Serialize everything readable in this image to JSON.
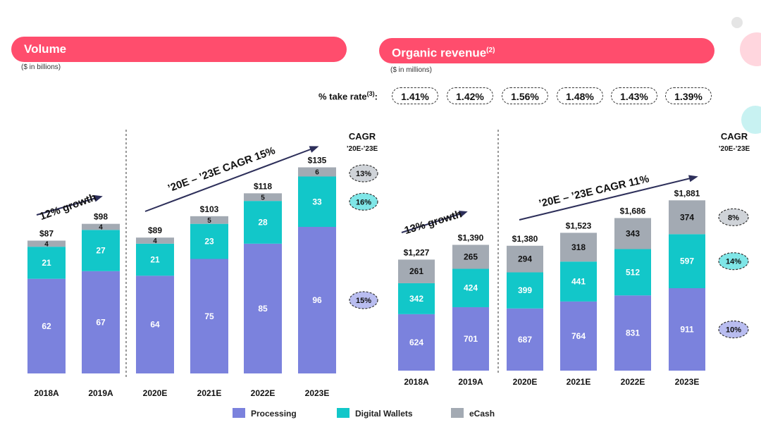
{
  "volume": {
    "title": "Volume",
    "subtitle": "($ in billions)"
  },
  "revenue": {
    "title": "Organic revenue",
    "title_note": "(2)",
    "subtitle": "($ in millions)",
    "take_rate_label": "% take rate",
    "take_rate_note": "(3)",
    "take_rate_suffix": ":",
    "take_rates": [
      "1.41%",
      "1.42%",
      "1.56%",
      "1.48%",
      "1.43%",
      "1.39%"
    ]
  },
  "colors": {
    "processing": "#7b82dd",
    "digital_wallets": "#12c7c9",
    "ecash": "#a3aab3",
    "accent": "#ff4d6d"
  },
  "legend": [
    "Processing",
    "Digital Wallets",
    "eCash"
  ],
  "chart_data": [
    {
      "type": "bar",
      "stacked": true,
      "title": "Volume",
      "units": "($ in billions)",
      "categories": [
        "2018A",
        "2019A",
        "2020E",
        "2021E",
        "2022E",
        "2023E"
      ],
      "series": [
        {
          "name": "Processing",
          "values": [
            62,
            67,
            64,
            75,
            85,
            96
          ]
        },
        {
          "name": "Digital Wallets",
          "values": [
            21,
            27,
            21,
            23,
            28,
            33
          ]
        },
        {
          "name": "eCash",
          "values": [
            4,
            4,
            4,
            5,
            5,
            6
          ]
        }
      ],
      "totals": [
        "$87",
        "$98",
        "$89",
        "$103",
        "$118",
        "$135"
      ],
      "ylim": [
        0,
        135
      ],
      "growth_label": "12% growth",
      "cagr_arrow_label": "’20E – ’23E CAGR 15%",
      "cagr_header": "CAGR",
      "cagr_header_sub": "’20E-’23E",
      "cagr": {
        "Processing": "15%",
        "Digital Wallets": "16%",
        "eCash": "13%"
      }
    },
    {
      "type": "bar",
      "stacked": true,
      "title": "Organic revenue",
      "units": "($ in millions)",
      "categories": [
        "2018A",
        "2019A",
        "2020E",
        "2021E",
        "2022E",
        "2023E"
      ],
      "series": [
        {
          "name": "Processing",
          "values": [
            624,
            701,
            687,
            764,
            831,
            911
          ]
        },
        {
          "name": "Digital Wallets",
          "values": [
            342,
            424,
            399,
            441,
            512,
            597
          ]
        },
        {
          "name": "eCash",
          "values": [
            261,
            265,
            294,
            318,
            343,
            374
          ]
        }
      ],
      "totals": [
        "$1,227",
        "$1,390",
        "$1,380",
        "$1,523",
        "$1,686",
        "$1,881"
      ],
      "ylim": [
        0,
        1881
      ],
      "growth_label": "13% growth",
      "cagr_arrow_label": "’20E – ’23E CAGR 11%",
      "cagr_header": "CAGR",
      "cagr_header_sub": "’20E-’23E",
      "cagr": {
        "Processing": "10%",
        "Digital Wallets": "14%",
        "eCash": "8%"
      }
    }
  ]
}
